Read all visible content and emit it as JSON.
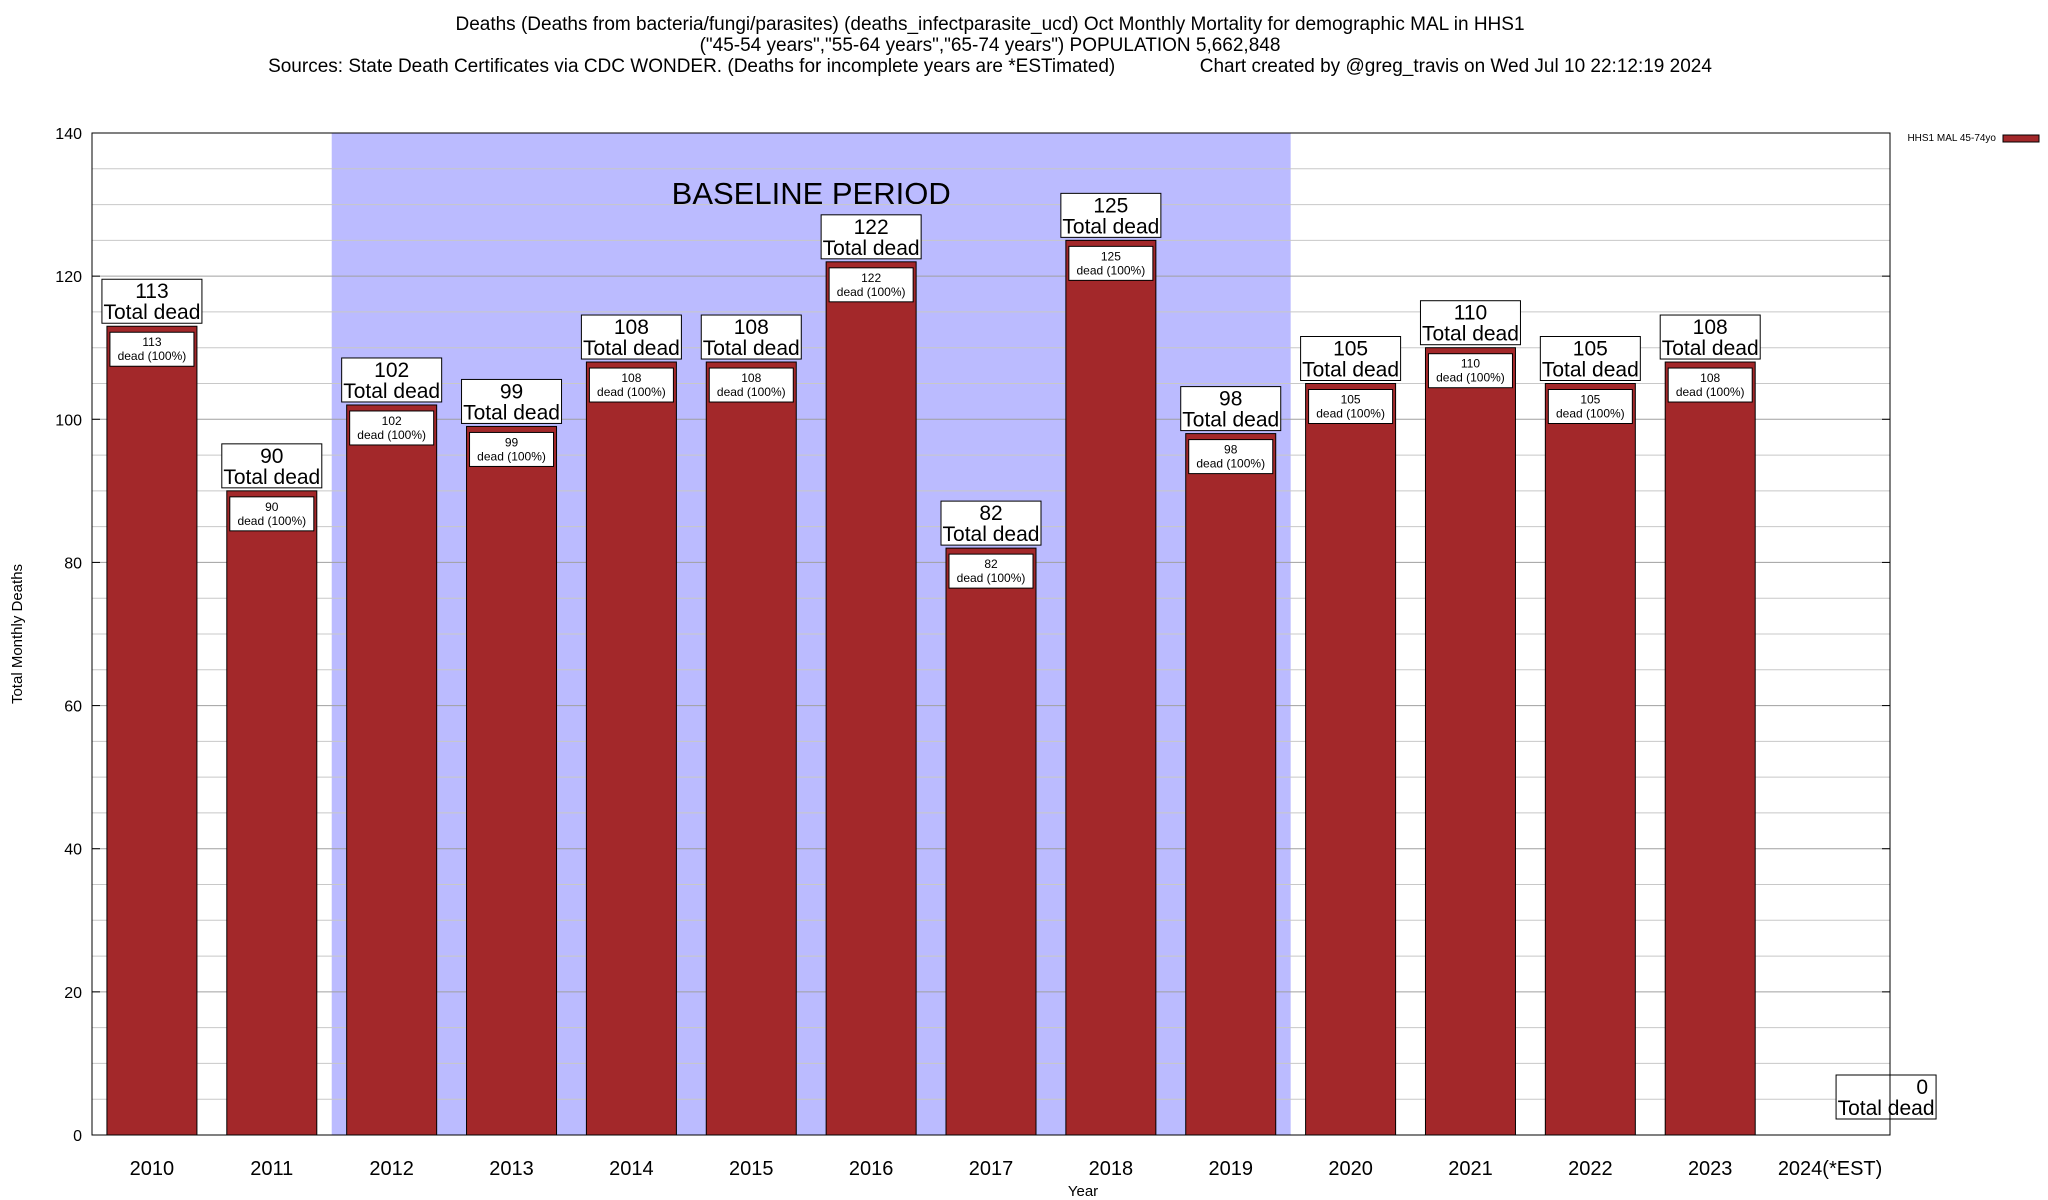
{
  "header": {
    "title_line1": "Deaths (Deaths from bacteria/fungi/parasites) (deaths_infectparasite_ucd) Oct Monthly Mortality for demographic MAL in HHS1",
    "title_line2": "(\"45-54 years\",\"55-64 years\",\"65-74 years\") POPULATION 5,662,848",
    "title_line3": "Sources: State Death Certificates via CDC WONDER. (Deaths for incomplete years are *ESTimated)                Chart created by @greg_travis on Wed Jul 10 22:12:19 2024"
  },
  "chart_data": {
    "type": "bar",
    "categories": [
      "2010",
      "2011",
      "2012",
      "2013",
      "2014",
      "2015",
      "2016",
      "2017",
      "2018",
      "2019",
      "2020",
      "2021",
      "2022",
      "2023",
      "2024(*EST)"
    ],
    "series": [
      {
        "name": "HHS1 MAL 45-74yo",
        "values": [
          113,
          90,
          102,
          99,
          108,
          108,
          122,
          82,
          125,
          98,
          105,
          110,
          105,
          108,
          0
        ],
        "color": "#a3282a"
      }
    ],
    "top_label_suffix": "Total dead",
    "inner_label_suffix": "dead (100%)",
    "xlabel": "Year",
    "ylabel": "Total Monthly Deaths",
    "ylim": [
      0,
      140
    ],
    "yticks": [
      0,
      20,
      40,
      60,
      80,
      100,
      120,
      140
    ],
    "grid": true,
    "legend_position": "top-right",
    "baseline_period": {
      "label": "BASELINE PERIOD",
      "start": "2012",
      "end": "2019",
      "color": "#bbbbff"
    }
  }
}
